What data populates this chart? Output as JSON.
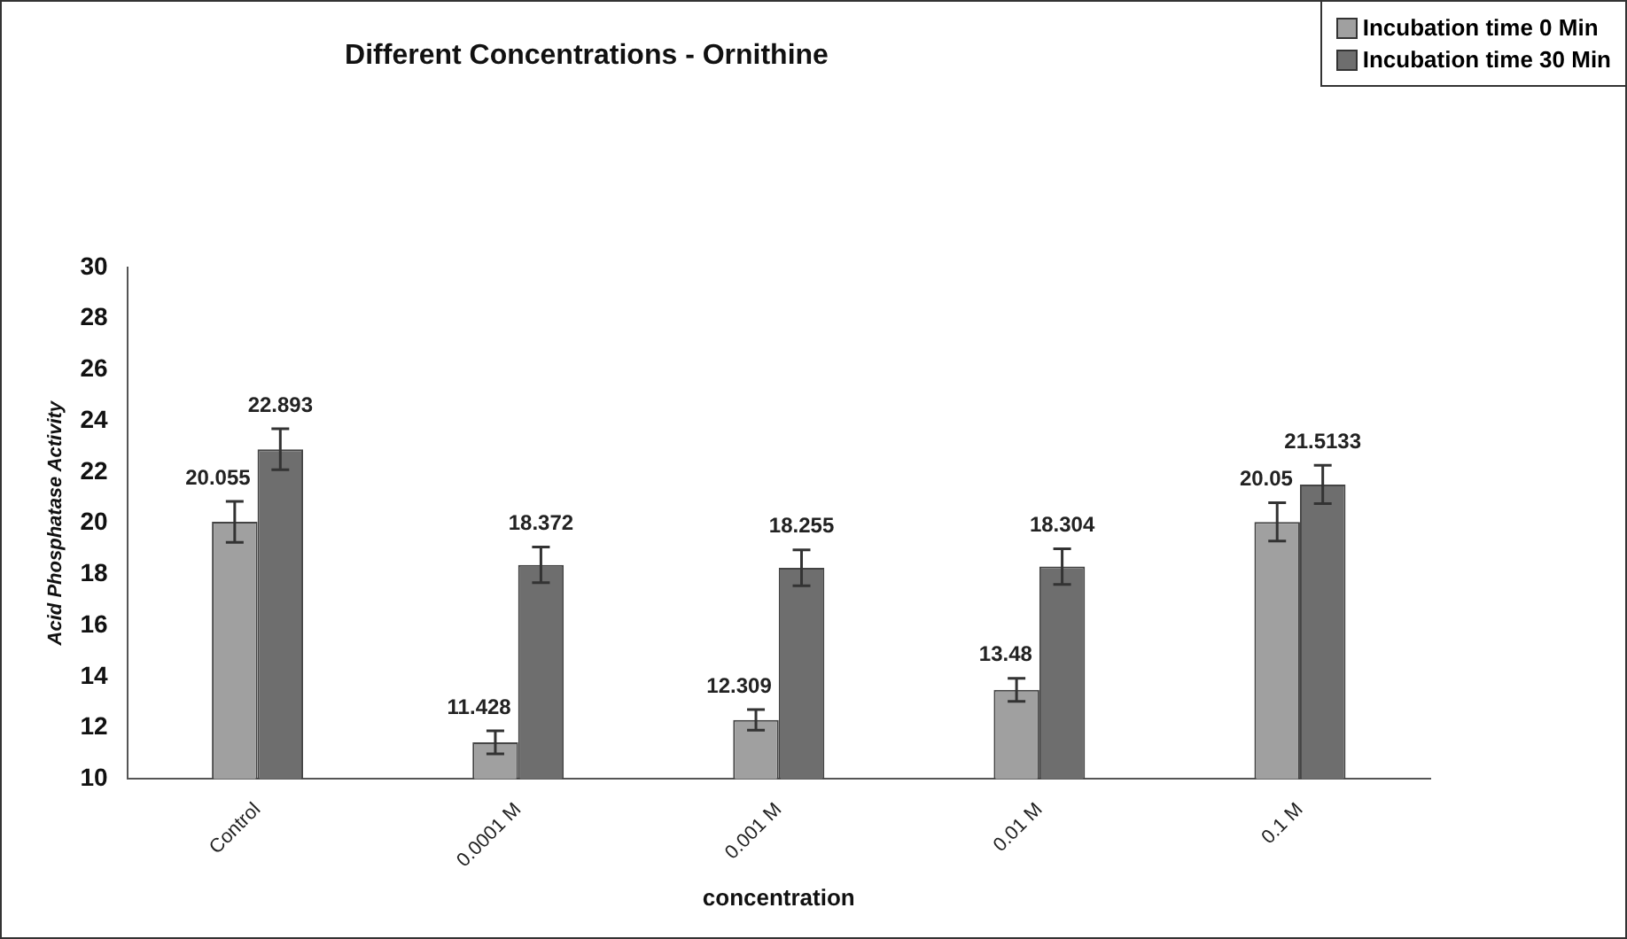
{
  "chart_data": {
    "type": "bar",
    "title": "Different Concentrations - Ornithine",
    "xlabel": "concentration",
    "ylabel": "Acid Phosphatase Activity",
    "categories": [
      "Control",
      "0.0001 M",
      "0.001 M",
      "0.01 M",
      "0.1 M"
    ],
    "series": [
      {
        "name": "Incubation time 0 Min",
        "color": "#a0a0a0",
        "values": [
          20.055,
          11.428,
          12.309,
          13.48,
          20.05
        ],
        "errors": [
          0.8,
          0.45,
          0.4,
          0.45,
          0.75
        ]
      },
      {
        "name": "Incubation time 30 Min",
        "color": "#6e6e6e",
        "values": [
          22.893,
          18.372,
          18.255,
          18.304,
          21.5133
        ],
        "errors": [
          0.8,
          0.7,
          0.7,
          0.7,
          0.75
        ]
      }
    ],
    "ylim": [
      10,
      30
    ],
    "yticks": [
      10,
      12,
      14,
      16,
      18,
      20,
      22,
      24,
      26,
      28,
      30
    ],
    "data_labels": true,
    "legend": "top right",
    "grid": false
  }
}
